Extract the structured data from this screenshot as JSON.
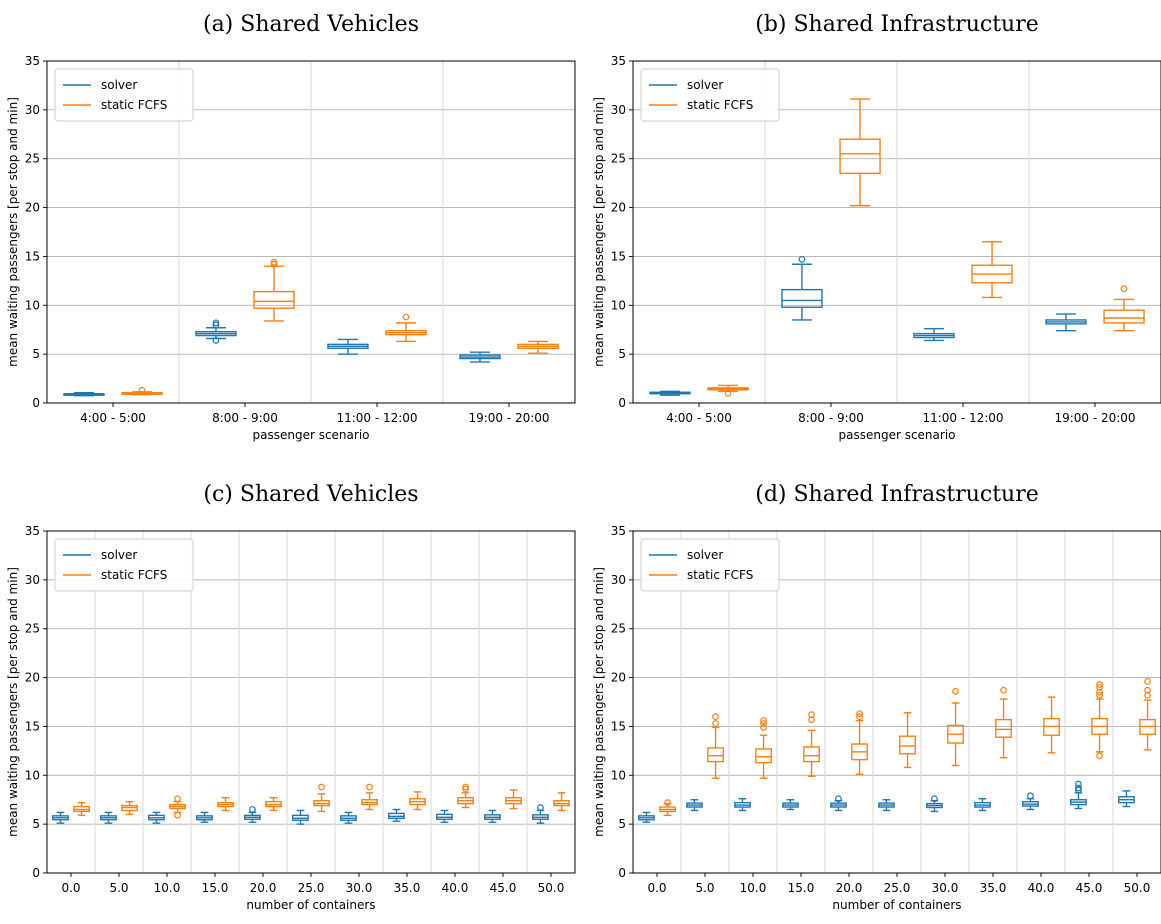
{
  "colors": {
    "solver": "#1f77b4",
    "fcfs": "#ff7f0e",
    "grid": "#b0b0b0",
    "vsep": "#d8d8d8"
  },
  "legend": [
    "solver",
    "static FCFS"
  ],
  "chart_data": [
    {
      "type": "box",
      "title": "(a) Shared Vehicles",
      "xlabel": "passenger scenario",
      "ylabel": "mean waiting passengers [per stop and min]",
      "ylim": [
        0,
        35
      ],
      "yticks": [
        "0",
        "5",
        "10",
        "15",
        "20",
        "25",
        "30",
        "35"
      ],
      "grid": "horizontal",
      "legend_position": "top-left",
      "categories": [
        "4:00 - 5:00",
        "8:00 - 9:00",
        "11:00 - 12:00",
        "19:00 - 20:00"
      ],
      "series": [
        {
          "name": "solver",
          "boxes": [
            {
              "whislo": 0.75,
              "q1": 0.8,
              "med": 0.85,
              "q3": 0.95,
              "whishi": 1.05,
              "fliers": []
            },
            {
              "whislo": 6.6,
              "q1": 6.9,
              "med": 7.1,
              "q3": 7.3,
              "whishi": 7.7,
              "fliers": [
                6.4,
                8.0,
                8.2
              ]
            },
            {
              "whislo": 5.0,
              "q1": 5.6,
              "med": 5.8,
              "q3": 6.0,
              "whishi": 6.5,
              "fliers": []
            },
            {
              "whislo": 4.2,
              "q1": 4.55,
              "med": 4.7,
              "q3": 4.9,
              "whishi": 5.2,
              "fliers": []
            }
          ]
        },
        {
          "name": "static FCFS",
          "boxes": [
            {
              "whislo": 0.85,
              "q1": 0.9,
              "med": 1.0,
              "q3": 1.05,
              "whishi": 1.15,
              "fliers": [
                1.3
              ]
            },
            {
              "whislo": 8.4,
              "q1": 9.7,
              "med": 10.4,
              "q3": 11.4,
              "whishi": 14.0,
              "fliers": [
                14.2,
                14.4
              ]
            },
            {
              "whislo": 6.3,
              "q1": 7.0,
              "med": 7.2,
              "q3": 7.4,
              "whishi": 8.2,
              "fliers": [
                8.8
              ]
            },
            {
              "whislo": 5.1,
              "q1": 5.6,
              "med": 5.8,
              "q3": 6.0,
              "whishi": 6.3,
              "fliers": []
            }
          ]
        }
      ]
    },
    {
      "type": "box",
      "title": "(b) Shared Infrastructure",
      "xlabel": "passenger scenario",
      "ylabel": "mean waiting passengers [per stop and min]",
      "ylim": [
        0,
        35
      ],
      "yticks": [
        "0",
        "5",
        "10",
        "15",
        "20",
        "25",
        "30",
        "35"
      ],
      "grid": "horizontal",
      "legend_position": "top-left",
      "categories": [
        "4:00 - 5:00",
        "8:00 - 9:00",
        "11:00 - 12:00",
        "19:00 - 20:00"
      ],
      "series": [
        {
          "name": "solver",
          "boxes": [
            {
              "whislo": 0.8,
              "q1": 0.95,
              "med": 1.0,
              "q3": 1.1,
              "whishi": 1.2,
              "fliers": []
            },
            {
              "whislo": 8.5,
              "q1": 9.8,
              "med": 10.5,
              "q3": 11.6,
              "whishi": 14.2,
              "fliers": [
                14.7
              ]
            },
            {
              "whislo": 6.4,
              "q1": 6.7,
              "med": 6.9,
              "q3": 7.1,
              "whishi": 7.6,
              "fliers": []
            },
            {
              "whislo": 7.4,
              "q1": 8.1,
              "med": 8.3,
              "q3": 8.5,
              "whishi": 9.1,
              "fliers": []
            }
          ]
        },
        {
          "name": "static FCFS",
          "boxes": [
            {
              "whislo": 1.2,
              "q1": 1.35,
              "med": 1.45,
              "q3": 1.55,
              "whishi": 1.8,
              "fliers": [
                1.0
              ]
            },
            {
              "whislo": 20.2,
              "q1": 23.5,
              "med": 25.5,
              "q3": 27.0,
              "whishi": 31.1,
              "fliers": []
            },
            {
              "whislo": 10.8,
              "q1": 12.3,
              "med": 13.2,
              "q3": 14.1,
              "whishi": 16.5,
              "fliers": []
            },
            {
              "whislo": 7.4,
              "q1": 8.2,
              "med": 8.7,
              "q3": 9.5,
              "whishi": 10.6,
              "fliers": [
                11.7
              ]
            }
          ]
        }
      ]
    },
    {
      "type": "box",
      "title": "(c) Shared Vehicles",
      "xlabel": "number of containers",
      "ylabel": "mean waiting passengers [per stop and min]",
      "ylim": [
        0,
        35
      ],
      "yticks": [
        "0",
        "5",
        "10",
        "15",
        "20",
        "25",
        "30",
        "35"
      ],
      "grid": "horizontal",
      "legend_position": "top-left",
      "categories": [
        "0.0",
        "5.0",
        "10.0",
        "15.0",
        "20.0",
        "25.0",
        "30.0",
        "35.0",
        "40.0",
        "45.0",
        "50.0"
      ],
      "series": [
        {
          "name": "solver",
          "boxes": [
            {
              "whislo": 5.1,
              "q1": 5.45,
              "med": 5.65,
              "q3": 5.85,
              "whishi": 6.2,
              "fliers": []
            },
            {
              "whislo": 5.1,
              "q1": 5.45,
              "med": 5.65,
              "q3": 5.85,
              "whishi": 6.2,
              "fliers": []
            },
            {
              "whislo": 5.1,
              "q1": 5.45,
              "med": 5.65,
              "q3": 5.9,
              "whishi": 6.2,
              "fliers": []
            },
            {
              "whislo": 5.2,
              "q1": 5.45,
              "med": 5.65,
              "q3": 5.85,
              "whishi": 6.2,
              "fliers": []
            },
            {
              "whislo": 5.2,
              "q1": 5.5,
              "med": 5.7,
              "q3": 5.9,
              "whishi": 6.2,
              "fliers": [
                6.5
              ]
            },
            {
              "whislo": 5.0,
              "q1": 5.4,
              "med": 5.6,
              "q3": 5.9,
              "whishi": 6.4,
              "fliers": []
            },
            {
              "whislo": 5.1,
              "q1": 5.4,
              "med": 5.6,
              "q3": 5.85,
              "whishi": 6.2,
              "fliers": []
            },
            {
              "whislo": 5.3,
              "q1": 5.6,
              "med": 5.8,
              "q3": 6.1,
              "whishi": 6.5,
              "fliers": []
            },
            {
              "whislo": 5.2,
              "q1": 5.5,
              "med": 5.7,
              "q3": 6.0,
              "whishi": 6.4,
              "fliers": []
            },
            {
              "whislo": 5.2,
              "q1": 5.5,
              "med": 5.7,
              "q3": 5.95,
              "whishi": 6.4,
              "fliers": []
            },
            {
              "whislo": 5.1,
              "q1": 5.5,
              "med": 5.7,
              "q3": 5.95,
              "whishi": 6.4,
              "fliers": [
                6.7
              ]
            }
          ]
        },
        {
          "name": "static FCFS",
          "boxes": [
            {
              "whislo": 5.9,
              "q1": 6.3,
              "med": 6.5,
              "q3": 6.8,
              "whishi": 7.2,
              "fliers": []
            },
            {
              "whislo": 6.0,
              "q1": 6.4,
              "med": 6.7,
              "q3": 6.9,
              "whishi": 7.3,
              "fliers": []
            },
            {
              "whislo": 6.2,
              "q1": 6.6,
              "med": 6.8,
              "q3": 7.0,
              "whishi": 7.3,
              "fliers": [
                5.9,
                7.6
              ]
            },
            {
              "whislo": 6.4,
              "q1": 6.8,
              "med": 7.0,
              "q3": 7.2,
              "whishi": 7.7,
              "fliers": []
            },
            {
              "whislo": 6.4,
              "q1": 6.8,
              "med": 7.0,
              "q3": 7.3,
              "whishi": 7.7,
              "fliers": []
            },
            {
              "whislo": 6.3,
              "q1": 6.9,
              "med": 7.1,
              "q3": 7.4,
              "whishi": 8.1,
              "fliers": [
                8.8
              ]
            },
            {
              "whislo": 6.5,
              "q1": 7.0,
              "med": 7.2,
              "q3": 7.5,
              "whishi": 8.2,
              "fliers": [
                8.8
              ]
            },
            {
              "whislo": 6.5,
              "q1": 7.0,
              "med": 7.3,
              "q3": 7.6,
              "whishi": 8.3,
              "fliers": []
            },
            {
              "whislo": 6.7,
              "q1": 7.1,
              "med": 7.4,
              "q3": 7.7,
              "whishi": 8.2,
              "fliers": [
                8.6,
                8.8
              ]
            },
            {
              "whislo": 6.6,
              "q1": 7.1,
              "med": 7.4,
              "q3": 7.7,
              "whishi": 8.5,
              "fliers": []
            },
            {
              "whislo": 6.4,
              "q1": 6.9,
              "med": 7.1,
              "q3": 7.4,
              "whishi": 8.2,
              "fliers": []
            }
          ]
        }
      ]
    },
    {
      "type": "box",
      "title": "(d) Shared Infrastructure",
      "xlabel": "number of containers",
      "ylabel": "mean waiting passengers [per stop and min]",
      "ylim": [
        0,
        35
      ],
      "yticks": [
        "0",
        "5",
        "10",
        "15",
        "20",
        "25",
        "30",
        "35"
      ],
      "grid": "horizontal",
      "legend_position": "top-left",
      "categories": [
        "0.0",
        "5.0",
        "10.0",
        "15.0",
        "20.0",
        "25.0",
        "30.0",
        "35.0",
        "40.0",
        "45.0",
        "50.0"
      ],
      "series": [
        {
          "name": "solver",
          "boxes": [
            {
              "whislo": 5.2,
              "q1": 5.45,
              "med": 5.65,
              "q3": 5.85,
              "whishi": 6.2,
              "fliers": []
            },
            {
              "whislo": 6.4,
              "q1": 6.75,
              "med": 6.95,
              "q3": 7.15,
              "whishi": 7.5,
              "fliers": []
            },
            {
              "whislo": 6.4,
              "q1": 6.75,
              "med": 6.95,
              "q3": 7.2,
              "whishi": 7.6,
              "fliers": []
            },
            {
              "whislo": 6.5,
              "q1": 6.75,
              "med": 6.95,
              "q3": 7.15,
              "whishi": 7.5,
              "fliers": []
            },
            {
              "whislo": 6.4,
              "q1": 6.75,
              "med": 6.95,
              "q3": 7.15,
              "whishi": 7.4,
              "fliers": [
                7.6
              ]
            },
            {
              "whislo": 6.4,
              "q1": 6.75,
              "med": 6.95,
              "q3": 7.15,
              "whishi": 7.5,
              "fliers": []
            },
            {
              "whislo": 6.3,
              "q1": 6.7,
              "med": 6.9,
              "q3": 7.1,
              "whishi": 7.4,
              "fliers": [
                7.6
              ]
            },
            {
              "whislo": 6.4,
              "q1": 6.75,
              "med": 6.95,
              "q3": 7.2,
              "whishi": 7.6,
              "fliers": []
            },
            {
              "whislo": 6.5,
              "q1": 6.85,
              "med": 7.05,
              "q3": 7.3,
              "whishi": 7.6,
              "fliers": [
                7.9
              ]
            },
            {
              "whislo": 6.6,
              "q1": 7.0,
              "med": 7.25,
              "q3": 7.5,
              "whishi": 8.2,
              "fliers": [
                8.5,
                8.7,
                9.1
              ]
            },
            {
              "whislo": 6.8,
              "q1": 7.2,
              "med": 7.5,
              "q3": 7.8,
              "whishi": 8.4,
              "fliers": []
            }
          ]
        },
        {
          "name": "static FCFS",
          "boxes": [
            {
              "whislo": 5.9,
              "q1": 6.3,
              "med": 6.5,
              "q3": 6.75,
              "whishi": 7.1,
              "fliers": [
                7.2
              ]
            },
            {
              "whislo": 9.7,
              "q1": 11.4,
              "med": 12.0,
              "q3": 12.8,
              "whishi": 14.9,
              "fliers": [
                15.3,
                16.0
              ]
            },
            {
              "whislo": 9.7,
              "q1": 11.3,
              "med": 11.9,
              "q3": 12.7,
              "whishi": 14.1,
              "fliers": [
                14.9,
                15.3,
                15.6
              ]
            },
            {
              "whislo": 9.9,
              "q1": 11.4,
              "med": 12.0,
              "q3": 12.9,
              "whishi": 14.6,
              "fliers": [
                15.7,
                16.2
              ]
            },
            {
              "whislo": 10.1,
              "q1": 11.6,
              "med": 12.4,
              "q3": 13.2,
              "whishi": 15.6,
              "fliers": [
                16.0,
                16.3
              ]
            },
            {
              "whislo": 10.8,
              "q1": 12.2,
              "med": 13.0,
              "q3": 14.0,
              "whishi": 16.4,
              "fliers": []
            },
            {
              "whislo": 11.0,
              "q1": 13.3,
              "med": 14.2,
              "q3": 15.1,
              "whishi": 17.4,
              "fliers": [
                18.6
              ]
            },
            {
              "whislo": 11.8,
              "q1": 13.9,
              "med": 14.7,
              "q3": 15.7,
              "whishi": 17.8,
              "fliers": [
                18.7
              ]
            },
            {
              "whislo": 12.3,
              "q1": 14.1,
              "med": 15.0,
              "q3": 15.8,
              "whishi": 18.0,
              "fliers": []
            },
            {
              "whislo": 12.4,
              "q1": 14.2,
              "med": 15.0,
              "q3": 15.8,
              "whishi": 17.8,
              "fliers": [
                12.0,
                18.2,
                18.5,
                19.0,
                19.3
              ]
            },
            {
              "whislo": 12.6,
              "q1": 14.2,
              "med": 15.0,
              "q3": 15.7,
              "whishi": 17.7,
              "fliers": [
                18.2,
                18.7,
                19.6
              ]
            }
          ]
        }
      ]
    }
  ]
}
